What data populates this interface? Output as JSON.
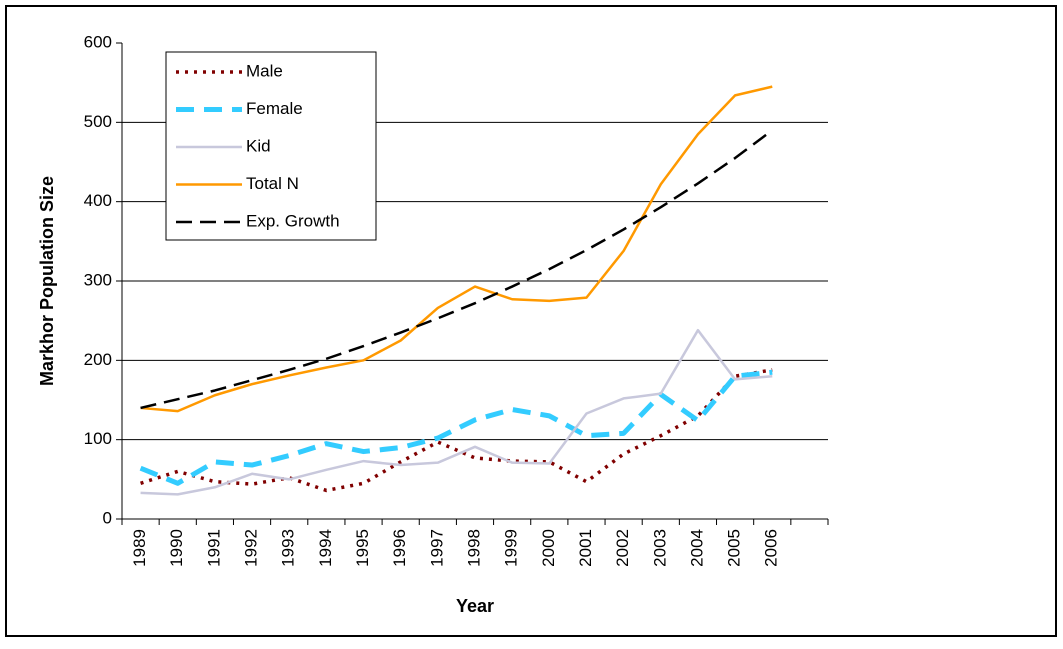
{
  "chart_data": {
    "type": "line",
    "ylabel": "Markhor Population Size",
    "xlabel": "Year",
    "categories": [
      "1989",
      "1990",
      "1991",
      "1992",
      "1993",
      "1994",
      "1995",
      "1996",
      "1997",
      "1998",
      "1999",
      "2000",
      "2001",
      "2002",
      "2003",
      "2004",
      "2005",
      "2006",
      null
    ],
    "series": [
      {
        "name": "Male",
        "color": "#800000",
        "dash": "dotted",
        "values": [
          45,
          60,
          47,
          44,
          52,
          36,
          45,
          72,
          97,
          77,
          73,
          72,
          47,
          82,
          105,
          130,
          180,
          188,
          null
        ]
      },
      {
        "name": "Female",
        "color": "#33ccff",
        "dash": "dashed",
        "values": [
          64,
          45,
          72,
          68,
          80,
          95,
          85,
          90,
          102,
          125,
          138,
          130,
          105,
          108,
          157,
          124,
          180,
          185,
          null
        ]
      },
      {
        "name": "Kid",
        "color": "#c8c8dc",
        "dash": "solid",
        "values": [
          33,
          31,
          40,
          57,
          50,
          62,
          73,
          68,
          71,
          91,
          71,
          70,
          133,
          152,
          158,
          238,
          176,
          180,
          null
        ]
      },
      {
        "name": "Total N",
        "color": "#ff9900",
        "dash": "solid",
        "values": [
          140,
          136,
          156,
          170,
          181,
          191,
          200,
          225,
          266,
          293,
          277,
          275,
          279,
          338,
          422,
          485,
          534,
          545,
          null
        ]
      },
      {
        "name": "Exp. Growth",
        "color": "#000000",
        "dash": "longdash",
        "values": [
          140,
          151,
          162,
          175,
          188,
          202,
          218,
          235,
          253,
          272,
          293,
          315,
          339,
          365,
          393,
          423,
          455,
          490,
          null
        ]
      }
    ],
    "ylim": [
      0,
      600
    ],
    "yticks": [
      0,
      100,
      200,
      300,
      400,
      500,
      600
    ],
    "grid": true,
    "legend": "upper left"
  }
}
